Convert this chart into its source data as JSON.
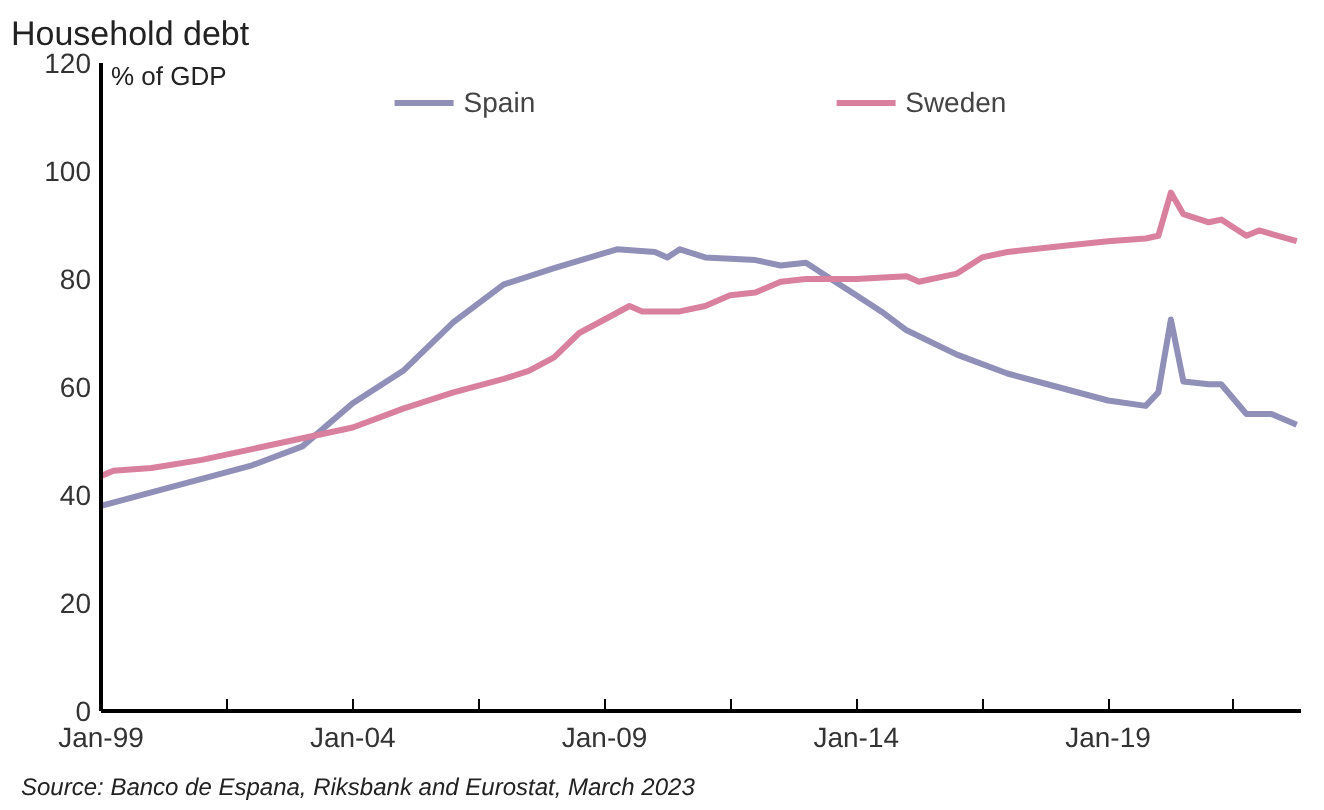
{
  "chart_data": {
    "type": "line",
    "title": "Household debt",
    "ylabel": "% of GDP",
    "xlim": [
      "1999-01",
      "2022-11"
    ],
    "ylim": [
      0,
      120
    ],
    "yticks": [
      0,
      20,
      40,
      60,
      80,
      100,
      120
    ],
    "xticks": [
      {
        "value": "1999-01",
        "label": "Jan-99"
      },
      {
        "value": "2001-07",
        "label": null
      },
      {
        "value": "2004-01",
        "label": "Jan-04"
      },
      {
        "value": "2006-07",
        "label": null
      },
      {
        "value": "2009-01",
        "label": "Jan-09"
      },
      {
        "value": "2011-07",
        "label": null
      },
      {
        "value": "2014-01",
        "label": "Jan-14"
      },
      {
        "value": "2016-07",
        "label": null
      },
      {
        "value": "2019-01",
        "label": "Jan-19"
      },
      {
        "value": "2021-07",
        "label": null
      }
    ],
    "grid": false,
    "legend": "top",
    "annotations": [
      "Source: Banco de Espana, Riksbank and Eurostat, March 2023"
    ],
    "series": [
      {
        "name": "Spain",
        "color": "#8f8fb8",
        "x": [
          "1999-01",
          "2000-01",
          "2001-01",
          "2002-01",
          "2003-01",
          "2004-01",
          "2005-01",
          "2006-01",
          "2007-01",
          "2008-01",
          "2009-04",
          "2010-01",
          "2010-04",
          "2010-07",
          "2011-01",
          "2012-01",
          "2012-07",
          "2013-01",
          "2013-07",
          "2014-01",
          "2014-07",
          "2015-01",
          "2016-01",
          "2017-01",
          "2018-01",
          "2019-01",
          "2019-10",
          "2020-01",
          "2020-04",
          "2020-07",
          "2021-01",
          "2021-04",
          "2021-10",
          "2022-04",
          "2022-10"
        ],
        "values": [
          38,
          40.5,
          43,
          45.5,
          49,
          57,
          63,
          72,
          79,
          82,
          85.5,
          85,
          84,
          85.5,
          84,
          83.5,
          82.5,
          83,
          80,
          77,
          74,
          70.5,
          66,
          62.5,
          60,
          57.5,
          56.5,
          59,
          72.5,
          61,
          60.5,
          60.5,
          55,
          55,
          53
        ]
      },
      {
        "name": "Sweden",
        "color": "#d9809f",
        "x": [
          "1999-01",
          "1999-04",
          "2000-01",
          "2001-01",
          "2002-01",
          "2003-01",
          "2004-01",
          "2005-01",
          "2006-01",
          "2007-01",
          "2007-07",
          "2008-01",
          "2008-07",
          "2009-01",
          "2009-07",
          "2009-10",
          "2010-07",
          "2011-01",
          "2011-07",
          "2012-01",
          "2012-07",
          "2013-01",
          "2014-01",
          "2015-01",
          "2015-04",
          "2016-01",
          "2016-07",
          "2017-01",
          "2018-01",
          "2019-01",
          "2019-10",
          "2020-01",
          "2020-04",
          "2020-07",
          "2021-01",
          "2021-04",
          "2021-10",
          "2022-01",
          "2022-10"
        ],
        "values": [
          43.5,
          44.5,
          45,
          46.5,
          48.5,
          50.5,
          52.5,
          56,
          59,
          61.5,
          63,
          65.5,
          70,
          72.5,
          75,
          74,
          74,
          75,
          77,
          77.5,
          79.5,
          80,
          80,
          80.5,
          79.5,
          81,
          84,
          85,
          86,
          87,
          87.5,
          88,
          96,
          92,
          90.5,
          91,
          88,
          89,
          87
        ]
      }
    ]
  }
}
